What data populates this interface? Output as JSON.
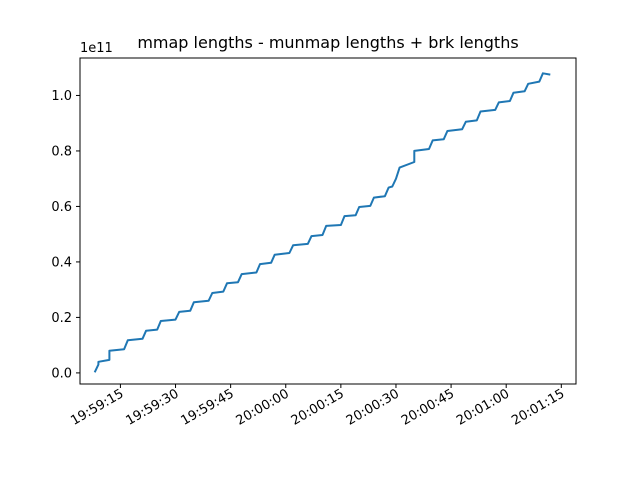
{
  "chart_data": {
    "type": "line",
    "title": "mmap lengths - munmap lengths + brk lengths",
    "xlabel": "",
    "ylabel": "",
    "y_offset_label": "1e11",
    "x_axis": {
      "type": "time",
      "range": [
        "19:59:04",
        "20:01:19"
      ],
      "ticks": [
        "19:59:15",
        "19:59:30",
        "19:59:45",
        "20:00:00",
        "20:00:15",
        "20:00:30",
        "20:00:45",
        "20:01:00",
        "20:01:15"
      ]
    },
    "y_axis": {
      "range": [
        -0.04,
        1.135
      ],
      "ticks": [
        "0.0",
        "0.2",
        "0.4",
        "0.6",
        "0.8",
        "1.0"
      ]
    },
    "grid": false,
    "legend": "none",
    "color": "#1f77b4",
    "series": [
      {
        "x": [
          "19:59:08",
          "19:59:09",
          "19:59:09",
          "19:59:12",
          "19:59:12",
          "19:59:16",
          "19:59:17",
          "19:59:21",
          "19:59:22",
          "19:59:25",
          "19:59:26",
          "19:59:30",
          "19:59:31",
          "19:59:34",
          "19:59:35",
          "19:59:39",
          "19:59:40",
          "19:59:43",
          "19:59:44",
          "19:59:47",
          "19:59:48",
          "19:59:52",
          "19:59:53",
          "19:59:56",
          "19:59:57",
          "20:00:01",
          "20:00:02",
          "20:00:06",
          "20:00:07",
          "20:00:10",
          "20:00:11",
          "20:00:15",
          "20:00:16",
          "20:00:19",
          "20:00:20",
          "20:00:23",
          "20:00:24",
          "20:00:27",
          "20:00:28",
          "20:00:29",
          "20:00:30",
          "20:00:31",
          "20:00:35",
          "20:00:35",
          "20:00:39",
          "20:00:40",
          "20:00:43",
          "20:00:44",
          "20:00:48",
          "20:00:49",
          "20:00:52",
          "20:00:53",
          "20:00:57",
          "20:00:58",
          "20:01:01",
          "20:01:02",
          "20:01:05",
          "20:01:06",
          "20:01:09",
          "20:01:10",
          "20:01:12"
        ],
        "values": [
          0.002,
          0.03,
          0.04,
          0.047,
          0.08,
          0.085,
          0.118,
          0.123,
          0.152,
          0.156,
          0.187,
          0.192,
          0.22,
          0.224,
          0.255,
          0.26,
          0.288,
          0.293,
          0.323,
          0.327,
          0.356,
          0.362,
          0.392,
          0.397,
          0.426,
          0.432,
          0.46,
          0.465,
          0.493,
          0.497,
          0.53,
          0.533,
          0.565,
          0.568,
          0.598,
          0.602,
          0.632,
          0.637,
          0.668,
          0.672,
          0.7,
          0.74,
          0.76,
          0.8,
          0.807,
          0.838,
          0.842,
          0.872,
          0.878,
          0.905,
          0.91,
          0.942,
          0.948,
          0.975,
          0.98,
          1.01,
          1.015,
          1.042,
          1.05,
          1.08,
          1.075
        ]
      }
    ]
  }
}
